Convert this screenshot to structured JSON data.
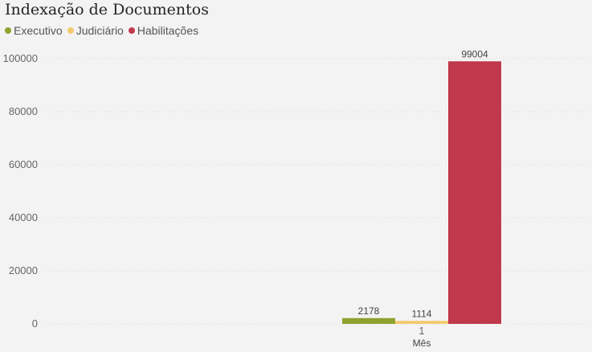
{
  "chart_data": {
    "type": "bar",
    "title": "Indexação de Documentos",
    "xlabel": "Mês",
    "ylabel": "",
    "categories": [
      "1"
    ],
    "series": [
      {
        "name": "Executivo",
        "color": "#8da32e",
        "values": [
          2178
        ]
      },
      {
        "name": "Judiciário",
        "color": "#f3c96b",
        "values": [
          1114
        ]
      },
      {
        "name": "Habilitações",
        "color": "#c0384b",
        "values": [
          99004
        ]
      }
    ],
    "y_ticks": [
      "0",
      "20000",
      "40000",
      "60000",
      "80000",
      "100000"
    ],
    "ylim": [
      0,
      100000
    ],
    "grid": true,
    "legend_position": "top-left"
  }
}
